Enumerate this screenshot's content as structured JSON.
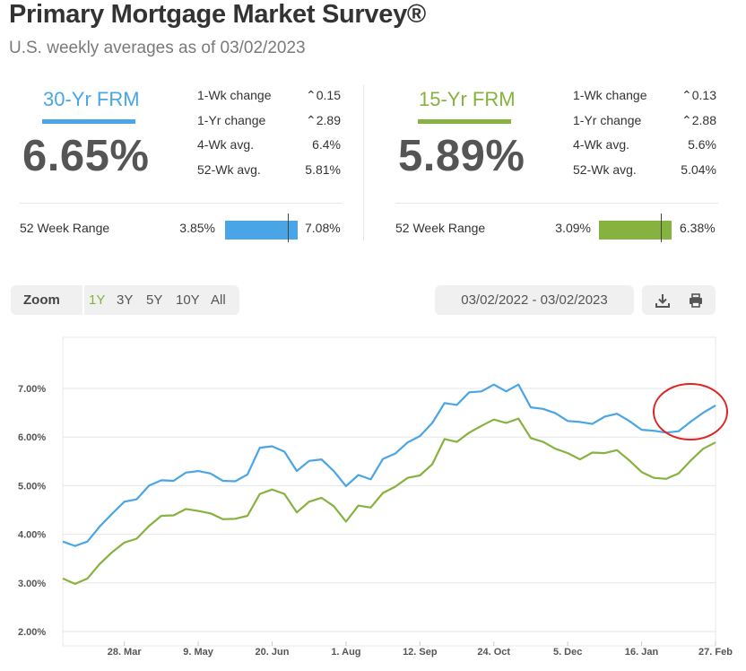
{
  "header": {
    "title": "Primary Mortgage Market Survey®",
    "subtitle": "U.S. weekly averages as of 03/02/2023"
  },
  "rates": [
    {
      "name": "30-Yr FRM",
      "value": "6.65%",
      "color": "#4aa5e6",
      "stats": [
        {
          "label": "1-Wk change",
          "value": "0.15",
          "arrow": "up"
        },
        {
          "label": "1-Yr change",
          "value": "2.89",
          "arrow": "up"
        },
        {
          "label": "4-Wk avg.",
          "value": "6.4%"
        },
        {
          "label": "52-Wk avg.",
          "value": "5.81%"
        }
      ],
      "range": {
        "label": "52 Week Range",
        "low": "3.85%",
        "high": "7.08%",
        "low_value": 3.85,
        "high_value": 7.08,
        "current_value": 6.65
      }
    },
    {
      "name": "15-Yr FRM",
      "value": "5.89%",
      "color": "#86b23f",
      "stats": [
        {
          "label": "1-Wk change",
          "value": "0.13",
          "arrow": "up"
        },
        {
          "label": "1-Yr change",
          "value": "2.88",
          "arrow": "up"
        },
        {
          "label": "4-Wk avg.",
          "value": "5.6%"
        },
        {
          "label": "52-Wk avg.",
          "value": "5.04%"
        }
      ],
      "range": {
        "label": "52 Week Range",
        "low": "3.09%",
        "high": "6.38%",
        "low_value": 3.09,
        "high_value": 6.38,
        "current_value": 5.89
      }
    }
  ],
  "controls": {
    "zoom_label": "Zoom",
    "zoom_options": [
      "1Y",
      "3Y",
      "5Y",
      "10Y",
      "All"
    ],
    "selected_zoom": "1Y",
    "selected_color": "#86b23f",
    "date_range": "03/02/2022 - 03/02/2023",
    "download_icon": "download-icon",
    "print_icon": "print-icon"
  },
  "chart_data": {
    "type": "line",
    "title": "",
    "xlabel": "",
    "ylabel": "",
    "ylim": [
      2.0,
      7.0
    ],
    "yticks": [
      "2.00%",
      "3.00%",
      "4.00%",
      "5.00%",
      "6.00%",
      "7.00%"
    ],
    "xticks": [
      "28. Mar",
      "9. May",
      "20. Jun",
      "1. Aug",
      "12. Sep",
      "24. Oct",
      "5. Dec",
      "16. Jan",
      "27. Feb"
    ],
    "grid": true,
    "annotation": "red circle around the most recent weeks of the 30-Yr FRM line",
    "series": [
      {
        "name": "30-Yr FRM",
        "color": "#4aa5e6",
        "values": [
          3.85,
          3.76,
          3.85,
          4.16,
          4.42,
          4.67,
          4.72,
          5.0,
          5.11,
          5.1,
          5.27,
          5.3,
          5.25,
          5.1,
          5.09,
          5.23,
          5.78,
          5.81,
          5.7,
          5.3,
          5.51,
          5.54,
          5.3,
          4.99,
          5.22,
          5.13,
          5.55,
          5.66,
          5.89,
          6.02,
          6.29,
          6.7,
          6.66,
          6.92,
          6.94,
          7.08,
          6.94,
          7.08,
          6.61,
          6.58,
          6.49,
          6.33,
          6.31,
          6.27,
          6.42,
          6.48,
          6.33,
          6.15,
          6.13,
          6.09,
          6.12,
          6.32,
          6.5,
          6.65
        ]
      },
      {
        "name": "15-Yr FRM",
        "color": "#86b23f",
        "values": [
          3.09,
          2.98,
          3.09,
          3.39,
          3.63,
          3.83,
          3.91,
          4.17,
          4.38,
          4.39,
          4.52,
          4.48,
          4.43,
          4.31,
          4.32,
          4.38,
          4.83,
          4.92,
          4.83,
          4.45,
          4.67,
          4.75,
          4.58,
          4.26,
          4.59,
          4.55,
          4.85,
          4.98,
          5.16,
          5.21,
          5.44,
          5.96,
          5.9,
          6.09,
          6.23,
          6.36,
          6.29,
          6.38,
          5.98,
          5.9,
          5.76,
          5.67,
          5.54,
          5.68,
          5.67,
          5.73,
          5.52,
          5.28,
          5.16,
          5.14,
          5.25,
          5.52,
          5.76,
          5.89
        ]
      }
    ]
  }
}
